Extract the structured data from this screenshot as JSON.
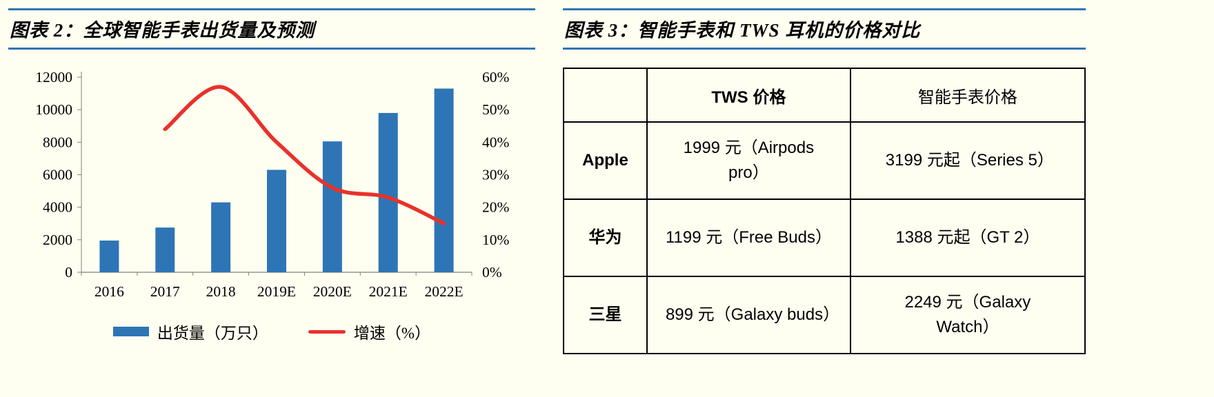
{
  "colors": {
    "background": "#FEFFF1",
    "accent_blue": "#2E75B6",
    "bar_blue": "#2E75B6",
    "line_red": "#E8322A",
    "axis_gray": "#808080",
    "table_border": "#000000"
  },
  "chart_data": [
    {
      "type": "bar+line",
      "title": "图表 2：全球智能手表出货量及预测",
      "categories": [
        "2016",
        "2017",
        "2018",
        "2019E",
        "2020E",
        "2021E",
        "2022E"
      ],
      "series": [
        {
          "name": "出货量（万只）",
          "type": "bar",
          "axis": "left",
          "values": [
            1950,
            2750,
            4300,
            6300,
            8050,
            9800,
            11300
          ]
        },
        {
          "name": "增速（%）",
          "type": "line",
          "axis": "right",
          "values": [
            null,
            44,
            57,
            40,
            26,
            23,
            15
          ]
        }
      ],
      "left_axis": {
        "min": 0,
        "max": 12000,
        "step": 2000,
        "labels": [
          "0",
          "2000",
          "4000",
          "6000",
          "8000",
          "10000",
          "12000"
        ]
      },
      "right_axis": {
        "min": 0,
        "max": 60,
        "step": 10,
        "labels": [
          "0%",
          "10%",
          "20%",
          "30%",
          "40%",
          "50%",
          "60%"
        ]
      },
      "legend_position": "bottom",
      "grid": false
    },
    {
      "type": "table",
      "title": "图表 3：智能手表和 TWS 耳机的价格对比",
      "columns": [
        "",
        "TWS 价格",
        "智能手表价格"
      ],
      "rows": [
        [
          "Apple",
          "1999 元（Airpods pro）",
          "3199 元起（Series 5）"
        ],
        [
          "华为",
          "1199 元（Free Buds）",
          "1388 元起（GT 2）"
        ],
        [
          "三星",
          "899 元（Galaxy buds）",
          "2249 元（Galaxy Watch）"
        ]
      ]
    }
  ]
}
